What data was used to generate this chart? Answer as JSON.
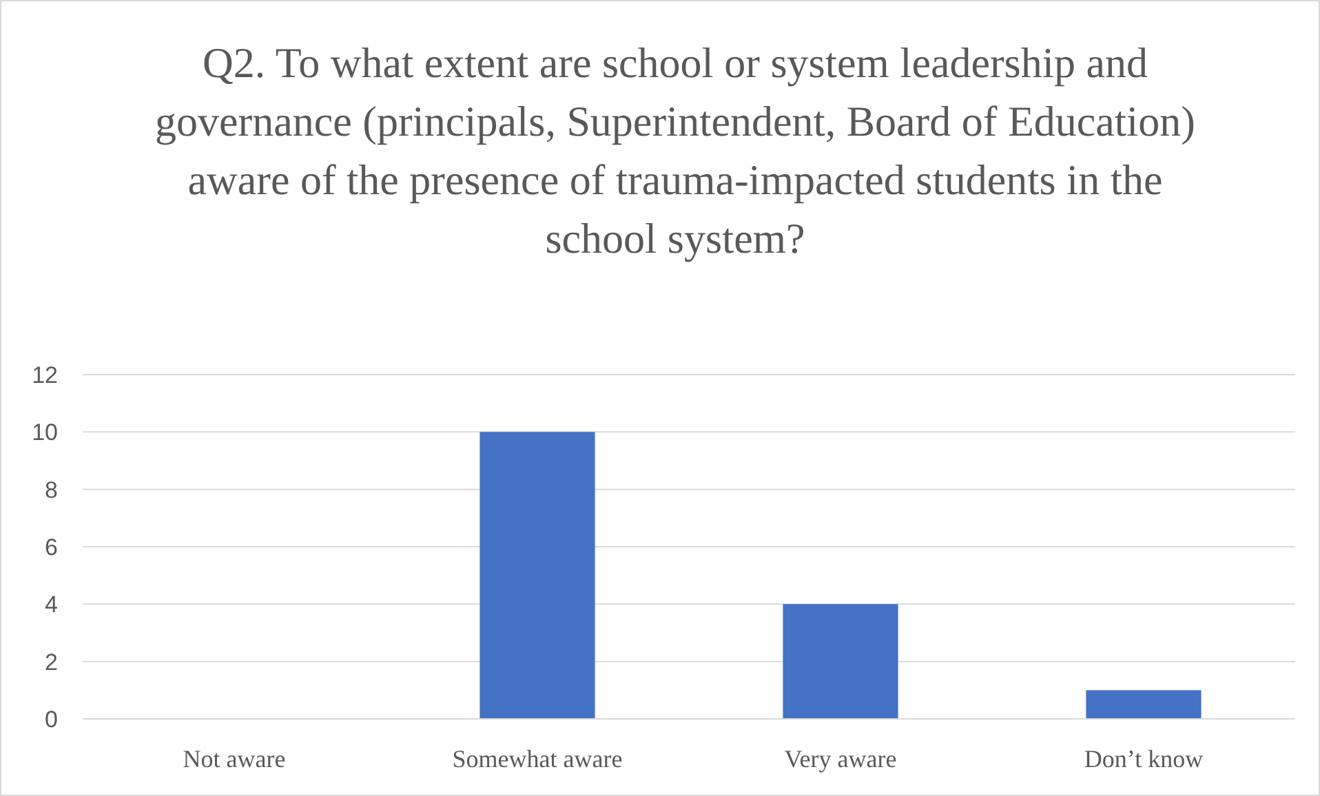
{
  "chart_data": {
    "type": "bar",
    "title": "Q2. To what extent are school or system leadership and governance (principals, Superintendent, Board of Education) aware of the presence of trauma-impacted students in the school system?",
    "categories": [
      "Not aware",
      "Somewhat aware",
      "Very aware",
      "Don’t know"
    ],
    "values": [
      0,
      10,
      4,
      1
    ],
    "color": "#4472c4",
    "ylim": [
      0,
      12
    ],
    "yticks": [
      0,
      2,
      4,
      6,
      8,
      10,
      12
    ],
    "grid": "y"
  }
}
